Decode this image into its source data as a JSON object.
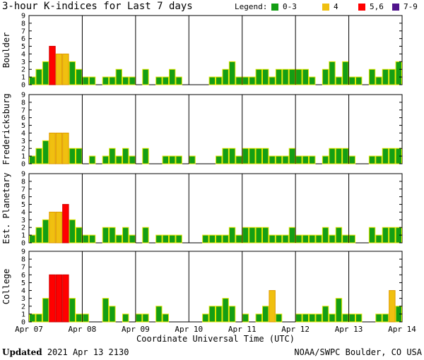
{
  "title": "3-hour K-indices for Last 7 days",
  "legend": {
    "label": "Legend:",
    "items": [
      {
        "label": "0-3",
        "color": "#149e14"
      },
      {
        "label": "4",
        "color": "#f0c010"
      },
      {
        "label": "5,6",
        "color": "#ff0000"
      },
      {
        "label": "7-9",
        "color": "#50148c"
      }
    ]
  },
  "footer": {
    "updated_label": "Updated",
    "updated_value": "2021 Apr 13 2130",
    "source": "NOAA/SWPC Boulder, CO USA"
  },
  "chart_data": {
    "type": "bar",
    "xlabel": "Coordinate Universal Time (UTC)",
    "x_ticks": [
      "Apr 07",
      "Apr 08",
      "Apr 09",
      "Apr 10",
      "Apr 11",
      "Apr 12",
      "Apr 13",
      "Apr 14"
    ],
    "ylim": [
      0,
      9
    ],
    "y_ticks": [
      0,
      1,
      2,
      3,
      4,
      5,
      6,
      7,
      8,
      9
    ],
    "bar_colors": {
      "0-3": "#149e14",
      "4": "#f0c010",
      "5,6": "#ff0000",
      "7-9": "#50148c"
    },
    "series": [
      {
        "name": "Boulder",
        "values": [
          1,
          2,
          3,
          5,
          4,
          4,
          3,
          2,
          1,
          1,
          0,
          1,
          1,
          2,
          1,
          1,
          0,
          2,
          0,
          1,
          1,
          2,
          1,
          0,
          0,
          0,
          0,
          1,
          1,
          2,
          3,
          1,
          1,
          1,
          2,
          2,
          1,
          2,
          2,
          2,
          2,
          2,
          1,
          0,
          2,
          3,
          1,
          3,
          1,
          1,
          0,
          2,
          1,
          2,
          2,
          3,
          2,
          0
        ]
      },
      {
        "name": "Fredericksburg",
        "values": [
          1,
          2,
          3,
          4,
          4,
          4,
          2,
          2,
          0,
          1,
          0,
          1,
          2,
          1,
          2,
          1,
          0,
          2,
          0,
          0,
          1,
          1,
          1,
          0,
          1,
          0,
          0,
          0,
          1,
          2,
          2,
          1,
          2,
          2,
          2,
          2,
          1,
          1,
          1,
          2,
          1,
          1,
          1,
          0,
          1,
          2,
          2,
          2,
          1,
          0,
          0,
          1,
          1,
          2,
          2,
          2,
          2,
          0
        ]
      },
      {
        "name": "Est. Planetary",
        "values": [
          1,
          2,
          3,
          4,
          4,
          5,
          3,
          2,
          1,
          1,
          0,
          2,
          2,
          1,
          2,
          1,
          0,
          2,
          0,
          1,
          1,
          1,
          1,
          0,
          0,
          0,
          1,
          1,
          1,
          1,
          2,
          1,
          2,
          2,
          2,
          2,
          1,
          1,
          1,
          2,
          1,
          1,
          1,
          1,
          2,
          1,
          2,
          1,
          1,
          0,
          0,
          2,
          1,
          2,
          2,
          2,
          1,
          0
        ]
      },
      {
        "name": "College",
        "values": [
          1,
          1,
          3,
          6,
          6,
          6,
          3,
          1,
          1,
          0,
          0,
          3,
          2,
          0,
          1,
          0,
          1,
          1,
          0,
          2,
          1,
          0,
          0,
          0,
          0,
          0,
          1,
          2,
          2,
          3,
          2,
          0,
          1,
          0,
          1,
          2,
          4,
          1,
          0,
          0,
          1,
          1,
          1,
          1,
          2,
          1,
          3,
          1,
          1,
          1,
          0,
          0,
          1,
          1,
          4,
          2,
          1,
          1,
          0
        ]
      }
    ]
  }
}
